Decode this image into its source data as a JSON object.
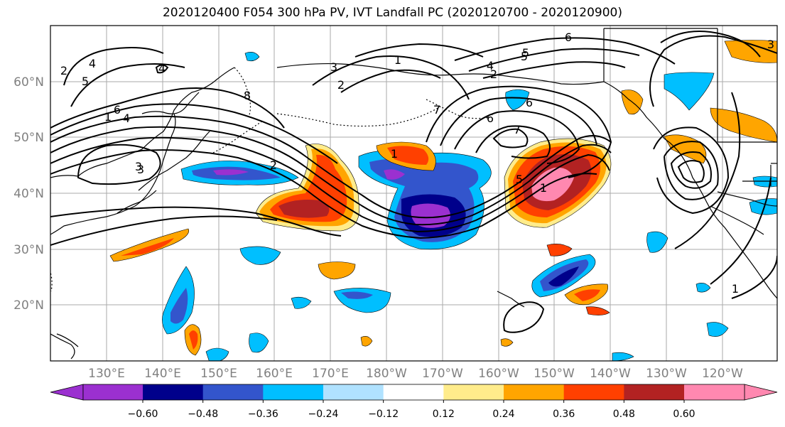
{
  "title": "2020120400 F054 300 hPa PV, IVT Landfall PC (2020120700 - 2020120900)",
  "map": {
    "lat_ticks": [
      "60°N",
      "50°N",
      "40°N",
      "30°N",
      "20°N"
    ],
    "lon_ticks": [
      "130°E",
      "140°E",
      "150°E",
      "160°E",
      "170°E",
      "180°W",
      "170°W",
      "160°W",
      "150°W",
      "140°W",
      "130°W",
      "120°W"
    ],
    "contour_labels": [
      "2",
      "4",
      "5",
      "6",
      "3",
      "1",
      "8",
      "2",
      "4",
      "3",
      "2",
      "1",
      "5",
      "6",
      "7",
      "1",
      "6",
      "7",
      "1",
      "5",
      "2",
      "3",
      "1",
      "6",
      "4",
      "5",
      "4",
      "3"
    ]
  },
  "colorbar": {
    "tick_labels": [
      "−0.60",
      "−0.48",
      "−0.36",
      "−0.24",
      "−0.12",
      "0.12",
      "0.24",
      "0.36",
      "0.48",
      "0.60"
    ],
    "colors": [
      "#9b30d0",
      "#00008b",
      "#3355cc",
      "#00bfff",
      "#b0e2ff",
      "#ffffff",
      "#ffec8b",
      "#ffa500",
      "#ff4000",
      "#b22222",
      "#ff88b0"
    ]
  }
}
